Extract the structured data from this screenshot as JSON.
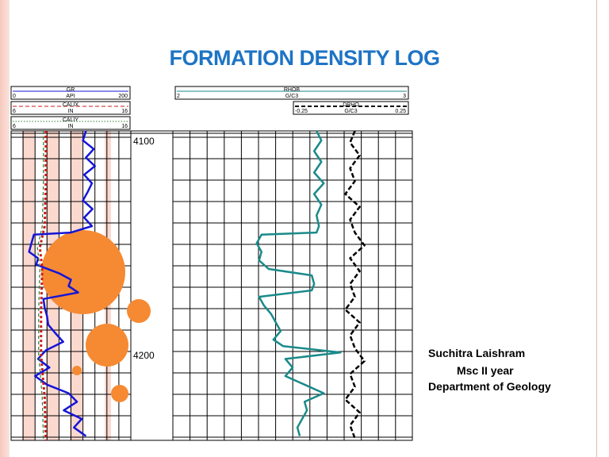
{
  "slide": {
    "title": "FORMATION DENSITY LOG",
    "author": "Suchitra Laishram",
    "course": "Msc II year",
    "department": "Department of Geology"
  },
  "colors": {
    "title": "#1e74c4",
    "gr": "#1515d8",
    "calix": "#cc1a1a",
    "caliy": "#2e7d32",
    "rhob": "#1a8a8a",
    "drho": "#000000",
    "bubbles": "#f58a33",
    "track_shading": "#fbd9cf"
  },
  "chart_data": {
    "type": "line",
    "title": "",
    "depth_labels": [
      "4100",
      "4200"
    ],
    "depth_range": [
      4095,
      4240
    ],
    "tracks": [
      {
        "headers": [
          {
            "name": "GR",
            "unit": "API",
            "min": "0",
            "max": "200",
            "style": "solid"
          },
          {
            "name": "CALIX",
            "unit": "IN",
            "min": "6",
            "max": "16",
            "style": "dashed"
          },
          {
            "name": "CALIY",
            "unit": "IN",
            "min": "6",
            "max": "16",
            "style": "dotted"
          }
        ]
      },
      {
        "headers": [
          {
            "name": "RHOB",
            "unit": "G/C3",
            "min": "2",
            "max": "3",
            "style": "solid"
          },
          {
            "name": "DRHO",
            "unit": "G/C3",
            "min": "-0.25",
            "max": "0.25",
            "style": "dashed"
          }
        ]
      }
    ],
    "series": [
      {
        "name": "GR",
        "track": 0,
        "scale": [
          0,
          200
        ],
        "points": [
          [
            4095,
            125
          ],
          [
            4100,
            120
          ],
          [
            4104,
            138
          ],
          [
            4108,
            125
          ],
          [
            4112,
            140
          ],
          [
            4116,
            122
          ],
          [
            4120,
            135
          ],
          [
            4124,
            128
          ],
          [
            4128,
            120
          ],
          [
            4132,
            136
          ],
          [
            4136,
            122
          ],
          [
            4140,
            135
          ],
          [
            4143,
            100
          ],
          [
            4144,
            38
          ],
          [
            4148,
            34
          ],
          [
            4152,
            30
          ],
          [
            4155,
            45
          ],
          [
            4158,
            42
          ],
          [
            4162,
            80
          ],
          [
            4165,
            100
          ],
          [
            4168,
            96
          ],
          [
            4171,
            112
          ],
          [
            4174,
            54
          ],
          [
            4178,
            56
          ],
          [
            4182,
            60
          ],
          [
            4186,
            62
          ],
          [
            4190,
            74
          ],
          [
            4194,
            87
          ],
          [
            4198,
            58
          ],
          [
            4202,
            45
          ],
          [
            4206,
            64
          ],
          [
            4210,
            40
          ],
          [
            4214,
            60
          ],
          [
            4218,
            96
          ],
          [
            4222,
            110
          ],
          [
            4226,
            88
          ],
          [
            4230,
            118
          ],
          [
            4234,
            105
          ],
          [
            4238,
            125
          ]
        ]
      },
      {
        "name": "CALIX",
        "track": 0,
        "scale": [
          6,
          16
        ],
        "points": [
          [
            4095,
            8.9
          ],
          [
            4120,
            8.9
          ],
          [
            4140,
            8.8
          ],
          [
            4150,
            8.4
          ],
          [
            4160,
            8.6
          ],
          [
            4180,
            8.5
          ],
          [
            4200,
            8.5
          ],
          [
            4220,
            8.8
          ],
          [
            4240,
            8.9
          ]
        ]
      },
      {
        "name": "CALIY",
        "track": 0,
        "scale": [
          6,
          16
        ],
        "points": [
          [
            4095,
            8.7
          ],
          [
            4120,
            8.7
          ],
          [
            4140,
            8.6
          ],
          [
            4150,
            8.2
          ],
          [
            4160,
            8.4
          ],
          [
            4180,
            8.3
          ],
          [
            4200,
            8.3
          ],
          [
            4220,
            8.6
          ],
          [
            4240,
            8.7
          ]
        ]
      },
      {
        "name": "RHOB",
        "track": 1,
        "scale": [
          2,
          3
        ],
        "points": [
          [
            4095,
            2.6
          ],
          [
            4100,
            2.62
          ],
          [
            4105,
            2.59
          ],
          [
            4110,
            2.62
          ],
          [
            4115,
            2.59
          ],
          [
            4120,
            2.63
          ],
          [
            4125,
            2.59
          ],
          [
            4130,
            2.62
          ],
          [
            4135,
            2.6
          ],
          [
            4140,
            2.61
          ],
          [
            4143,
            2.6
          ],
          [
            4144,
            2.37
          ],
          [
            4148,
            2.35
          ],
          [
            4152,
            2.37
          ],
          [
            4156,
            2.36
          ],
          [
            4160,
            2.4
          ],
          [
            4163,
            2.58
          ],
          [
            4167,
            2.59
          ],
          [
            4170,
            2.58
          ],
          [
            4173,
            2.36
          ],
          [
            4177,
            2.38
          ],
          [
            4181,
            2.41
          ],
          [
            4185,
            2.43
          ],
          [
            4189,
            2.45
          ],
          [
            4193,
            2.42
          ],
          [
            4196,
            2.46
          ],
          [
            4199,
            2.7
          ],
          [
            4202,
            2.47
          ],
          [
            4206,
            2.5
          ],
          [
            4210,
            2.47
          ],
          [
            4214,
            2.55
          ],
          [
            4218,
            2.63
          ],
          [
            4222,
            2.55
          ],
          [
            4226,
            2.56
          ],
          [
            4230,
            2.54
          ],
          [
            4234,
            2.52
          ],
          [
            4238,
            2.53
          ]
        ]
      },
      {
        "name": "DRHO",
        "track": 1,
        "scale": [
          -0.25,
          0.25
        ],
        "points": [
          [
            4095,
            0.13
          ],
          [
            4101,
            0.12
          ],
          [
            4107,
            0.14
          ],
          [
            4113,
            0.12
          ],
          [
            4119,
            0.13
          ],
          [
            4125,
            0.11
          ],
          [
            4131,
            0.14
          ],
          [
            4137,
            0.12
          ],
          [
            4143,
            0.13
          ],
          [
            4149,
            0.15
          ],
          [
            4155,
            0.12
          ],
          [
            4161,
            0.14
          ],
          [
            4167,
            0.12
          ],
          [
            4173,
            0.13
          ],
          [
            4179,
            0.11
          ],
          [
            4185,
            0.14
          ],
          [
            4191,
            0.12
          ],
          [
            4197,
            0.13
          ],
          [
            4203,
            0.15
          ],
          [
            4209,
            0.12
          ],
          [
            4215,
            0.13
          ],
          [
            4221,
            0.11
          ],
          [
            4227,
            0.14
          ],
          [
            4233,
            0.12
          ],
          [
            4239,
            0.13
          ]
        ]
      }
    ]
  }
}
